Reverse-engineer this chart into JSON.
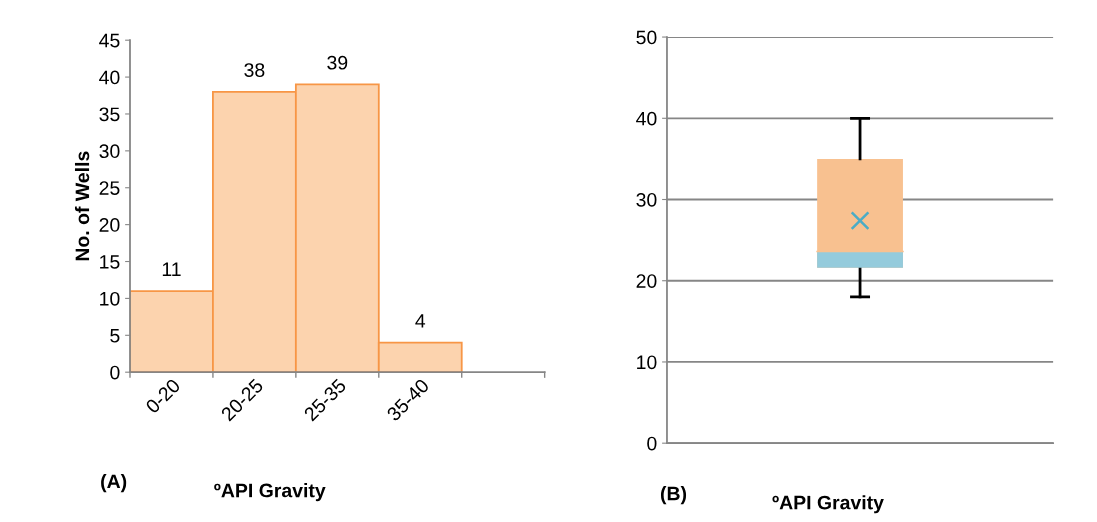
{
  "chart_data": [
    {
      "type": "bar",
      "categories": [
        "0-20",
        "20-25",
        "25-35",
        "35-40",
        null
      ],
      "values": [
        11,
        38,
        39,
        4,
        null
      ],
      "color": "#fcd3ae",
      "ylabel": "No. of Wells",
      "xlabel": "ºAPI Gravity",
      "ylim": [
        0,
        45
      ],
      "yticks": [
        0,
        5,
        10,
        15,
        20,
        25,
        30,
        35,
        40,
        45
      ],
      "data_labels": true,
      "grid": false,
      "annotations": [
        "(A)"
      ]
    },
    {
      "type": "box",
      "categories": [
        null
      ],
      "series": [
        {
          "type": "box",
          "color": "#f8c190",
          "boxes": [
            {
              "low": 18,
              "q1": 21.6,
              "median": 23.6,
              "q3": 35,
              "high": 40
            }
          ]
        },
        {
          "type": "bar",
          "color": "#94cbdc",
          "base": [
            21.6
          ],
          "values": [
            2.0
          ]
        },
        {
          "type": "scatter",
          "color": "#4bacc6",
          "values": [
            27.4
          ]
        }
      ],
      "marker": "cross",
      "xlabel": "ºAPI Gravity",
      "ylim": [
        0,
        50
      ],
      "yticks": [
        0,
        10,
        20,
        30,
        40,
        50
      ],
      "grid": "y",
      "annotations": [
        "(B)"
      ]
    }
  ]
}
